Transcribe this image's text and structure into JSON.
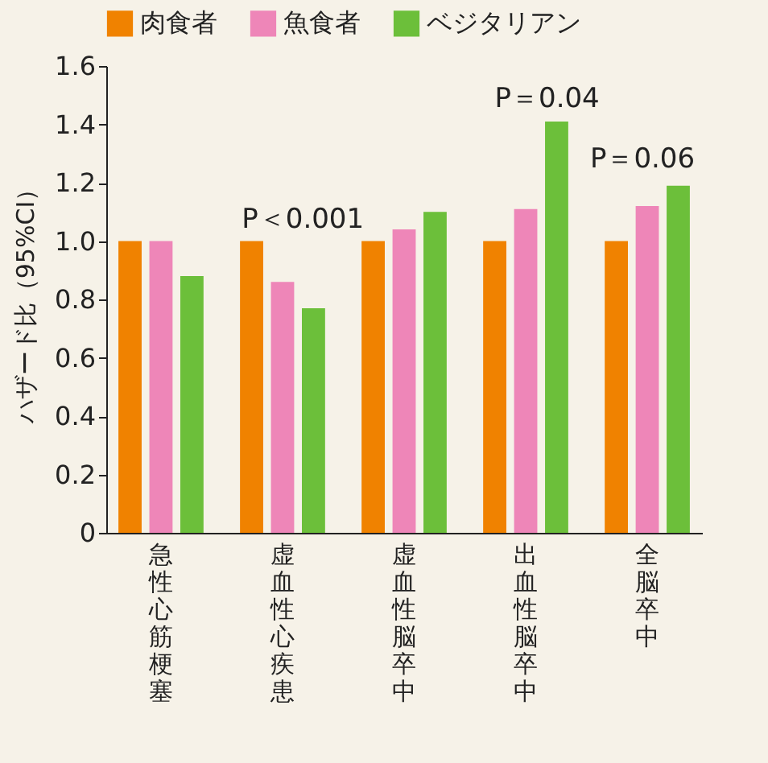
{
  "chart_data": {
    "type": "bar",
    "ylabel": "ハザード比（95%CI）",
    "categories": [
      "急性心筋梗塞",
      "虚血性心疾患",
      "虚血性脳卒中",
      "出血性脳卒中",
      "全脳卒中"
    ],
    "series": [
      {
        "name": "肉食者",
        "color": "#f08200",
        "values": [
          1.0,
          1.0,
          1.0,
          1.0,
          1.0
        ]
      },
      {
        "name": "魚食者",
        "color": "#ee86b8",
        "values": [
          1.0,
          0.86,
          1.04,
          1.11,
          1.12
        ]
      },
      {
        "name": "ベジタリアン",
        "color": "#6cbf3a",
        "values": [
          0.88,
          0.77,
          1.1,
          1.41,
          1.19
        ]
      }
    ],
    "ylim": [
      0,
      1.6
    ],
    "yticks": [
      0,
      0.2,
      0.4,
      0.6,
      0.8,
      {
        "value": 1,
        "label": "1.0"
      },
      1.2,
      1.4,
      1.6
    ],
    "grid": false,
    "legend": "top",
    "annotations": [
      "P＜0.001",
      "P＝0.04",
      "P＝0.06"
    ]
  }
}
